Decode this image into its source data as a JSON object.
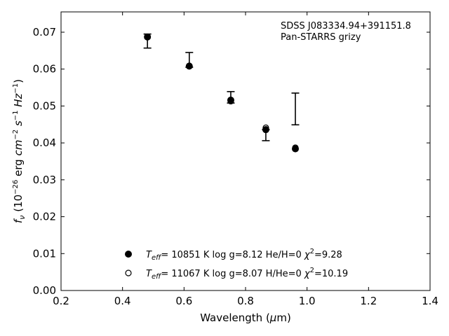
{
  "chart_data": {
    "type": "scatter",
    "title": "",
    "xlabel": "Wavelength (μm)",
    "ylabel": "fν (10^-26 erg cm^-2 s^-1 Hz^-1)",
    "xlim": [
      0.2,
      1.4
    ],
    "ylim": [
      0.0,
      0.0755
    ],
    "xticks": [
      0.2,
      0.4,
      0.6,
      0.8,
      1.0,
      1.2,
      1.4
    ],
    "xtick_labels": [
      "0.2",
      "0.4",
      "0.6",
      "0.8",
      "1.0",
      "1.2",
      "1.4"
    ],
    "yticks": [
      0.0,
      0.01,
      0.02,
      0.03,
      0.04,
      0.05,
      0.06,
      0.07
    ],
    "ytick_labels": [
      "0.00",
      "0.01",
      "0.02",
      "0.03",
      "0.04",
      "0.05",
      "0.06",
      "0.07"
    ],
    "grid": false,
    "annotations": [
      "SDSS J083334.94+391151.8",
      "Pan-STARRS grizy"
    ],
    "observed": {
      "x": [
        0.481,
        0.617,
        0.752,
        0.866,
        0.962
      ],
      "y_low": [
        0.0657,
        0.0605,
        0.0508,
        0.0406,
        0.0449
      ],
      "y_high": [
        0.0695,
        0.0645,
        0.0539,
        0.0436,
        0.0535
      ]
    },
    "series": [
      {
        "name": "Teff= 10851 K  log g=8.12  He/H=0  χ²=9.28",
        "marker": "filled-circle",
        "x": [
          0.481,
          0.617,
          0.752,
          0.866,
          0.962
        ],
        "y": [
          0.0687,
          0.0608,
          0.0516,
          0.0436,
          0.0384
        ]
      },
      {
        "name": "Teff= 11067 K  log g=8.07  H/He=0  χ²=10.19",
        "marker": "open-circle",
        "x": [
          0.481,
          0.617,
          0.752,
          0.866,
          0.962
        ],
        "y": [
          0.0687,
          0.0609,
          0.0513,
          0.0441,
          0.0387
        ]
      }
    ],
    "legend_position": "lower-center",
    "colors": {
      "marker": "#000000",
      "background": "#ffffff"
    }
  }
}
